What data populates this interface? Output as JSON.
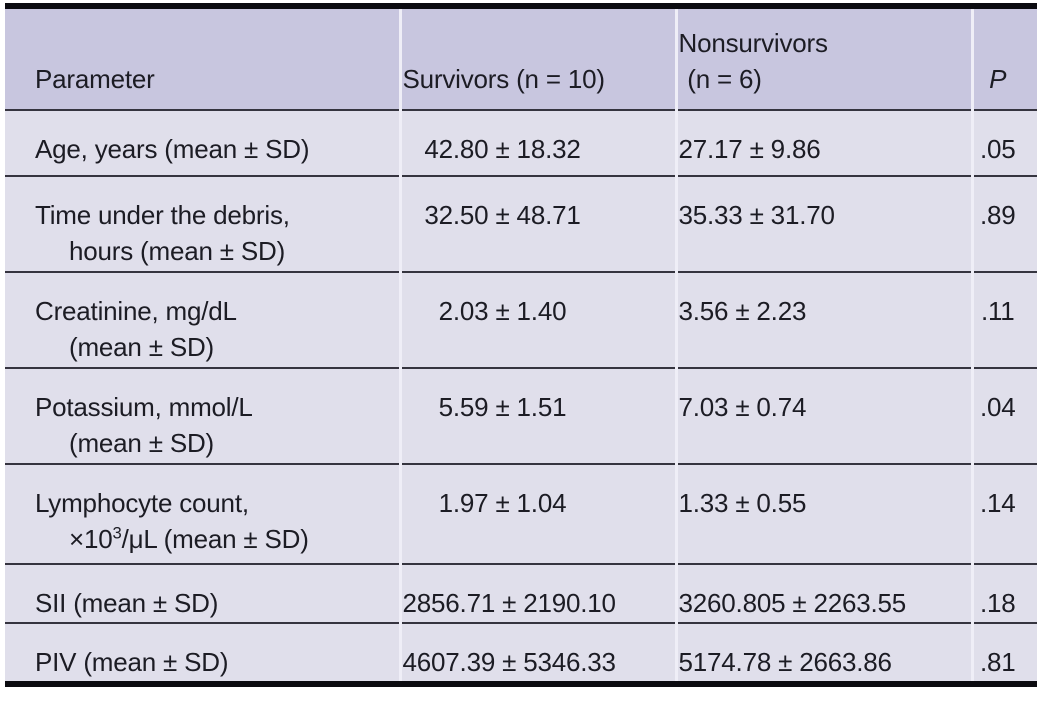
{
  "colors": {
    "header-bg": "#c8c6df",
    "body-bg": "#e0dfeb",
    "row-line": "#35343f",
    "thick-line": "#0b0b10",
    "col-divider": "#efeef7",
    "text": "#1c1c24"
  },
  "table": {
    "header": {
      "parameter": "Parameter",
      "survivors": "Survivors (n = 10)",
      "nonsurvivors_line1": "Nonsurvivors",
      "nonsurvivors_line2": "(n = 6)",
      "p": "P"
    },
    "rows": [
      {
        "label1": "Age, years (mean ± SD)",
        "label2": "",
        "survivors": "42.80 ± 18.32",
        "nonsurvivors": "27.17 ± 9.86",
        "p": ".05"
      },
      {
        "label1": "Time under the debris,",
        "label2": "hours (mean ± SD)",
        "survivors": "32.50 ± 48.71",
        "nonsurvivors": "35.33 ± 31.70",
        "p": ".89"
      },
      {
        "label1": "Creatinine, mg/dL",
        "label2": "(mean ± SD)",
        "survivors": "2.03 ± 1.40",
        "nonsurvivors": "3.56 ± 2.23",
        "p": ".11"
      },
      {
        "label1": "Potassium, mmol/L",
        "label2": "(mean ± SD)",
        "survivors": "5.59 ± 1.51",
        "nonsurvivors": "7.03 ± 0.74",
        "p": ".04"
      },
      {
        "label1": "Lymphocyte count,",
        "label2_pre": "×10",
        "label2_sup": "3",
        "label2_post": "/μL (mean ± SD)",
        "survivors": "1.97 ± 1.04",
        "nonsurvivors": "1.33 ± 0.55",
        "p": ".14"
      },
      {
        "label1": "SII (mean ± SD)",
        "label2": "",
        "survivors": "2856.71 ± 2190.10",
        "nonsurvivors": "3260.805 ± 2263.55",
        "p": ".18"
      },
      {
        "label1": "PIV (mean ± SD)",
        "label2": "",
        "survivors": "4607.39 ± 5346.33",
        "nonsurvivors": "5174.78 ± 2663.86",
        "p": ".81"
      }
    ]
  }
}
